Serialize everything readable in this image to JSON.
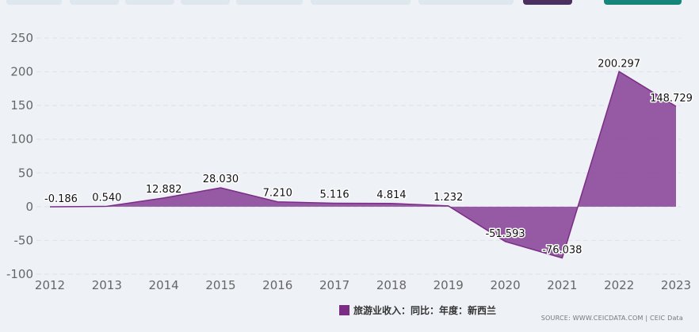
{
  "tabs": [
    {
      "label": "",
      "style": "light"
    },
    {
      "label": "",
      "style": "light"
    },
    {
      "label": "",
      "style": "light"
    },
    {
      "label": "",
      "style": "light"
    },
    {
      "label": "",
      "style": "light"
    },
    {
      "label": "",
      "style": "light"
    },
    {
      "label": "",
      "style": "light"
    },
    {
      "label": "",
      "style": "dark"
    },
    {
      "label": "",
      "style": "teal"
    }
  ],
  "colors": {
    "series_fill": "#8e4c9c",
    "series_line": "#7b2d86",
    "gridline": "#dbe3ea",
    "background": "#eef2f7"
  },
  "legend": {
    "label": "旅游业收入：同比：年度：新西兰"
  },
  "source": "SOURCE: WWW.CEICDATA.COM | CEIC Data",
  "chart_data": {
    "type": "area",
    "title": "",
    "xlabel": "",
    "ylabel": "",
    "x": [
      "2012",
      "2013",
      "2014",
      "2015",
      "2016",
      "2017",
      "2018",
      "2019",
      "2020",
      "2021",
      "2022",
      "2023"
    ],
    "series": [
      {
        "name": "旅游业收入：同比：年度：新西兰",
        "values": [
          -0.186,
          0.54,
          12.882,
          28.03,
          7.21,
          5.116,
          4.814,
          1.232,
          -51.593,
          -76.038,
          200.297,
          148.729
        ],
        "labels": [
          "-0.186",
          "0.540",
          "12.882",
          "28.030",
          "7.210",
          "5.116",
          "4.814",
          "1.232",
          "-51.593",
          "-76.038",
          "200.297",
          "148.729"
        ]
      }
    ],
    "ylim": [
      -100,
      250
    ],
    "yticks": [
      "-100",
      "-50",
      "0",
      "50",
      "100",
      "150",
      "200",
      "250"
    ],
    "grid": true,
    "legend_position": "bottom"
  }
}
